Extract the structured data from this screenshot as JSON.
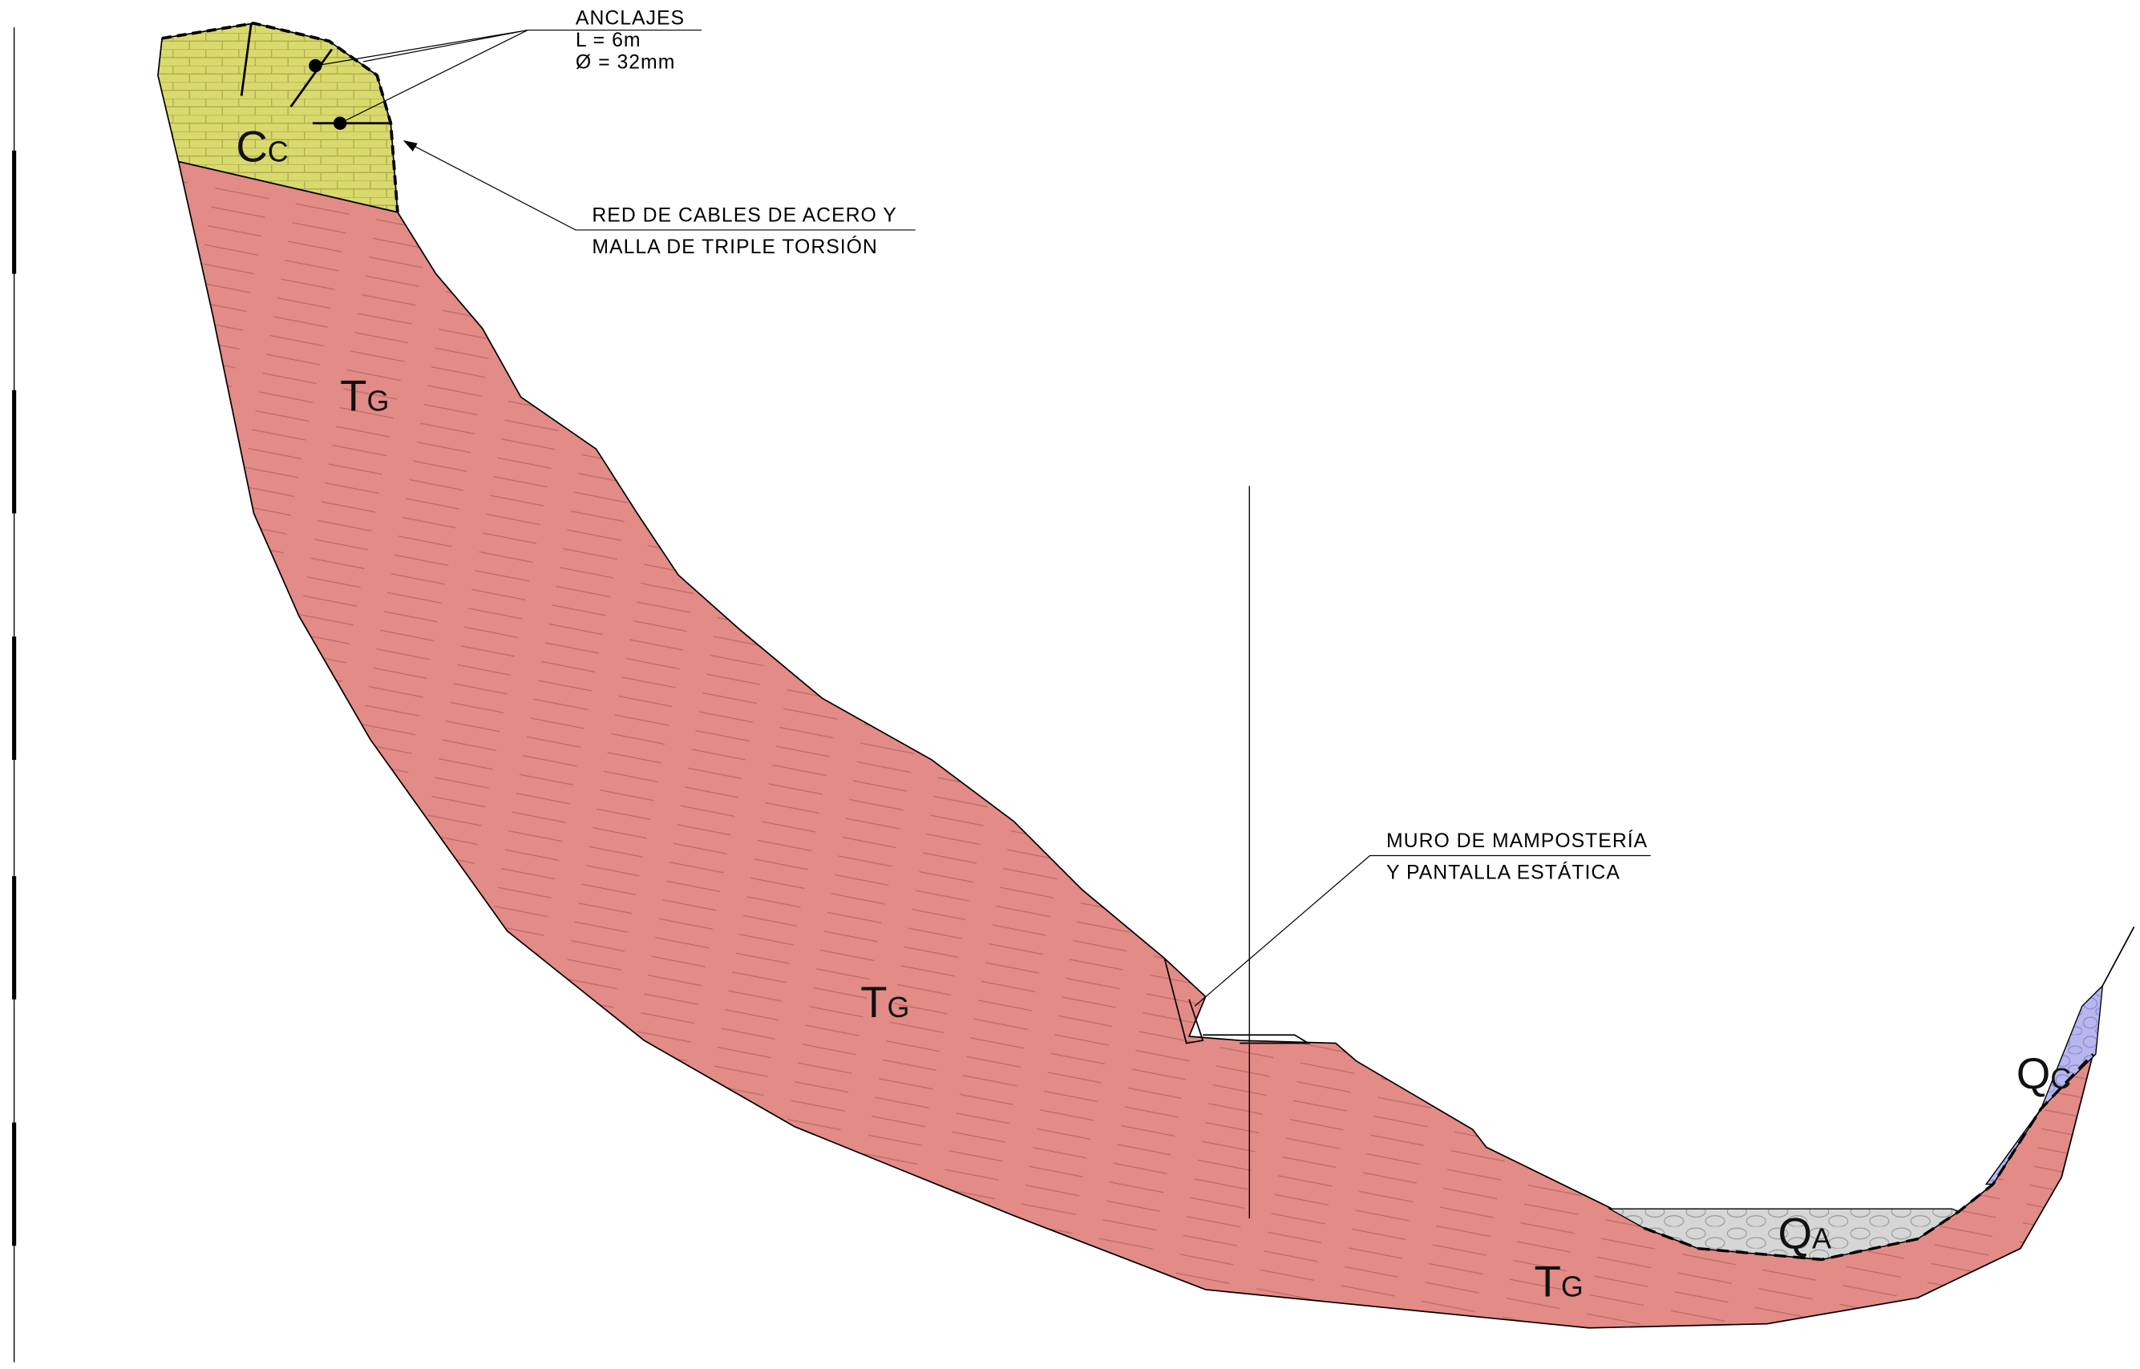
{
  "callouts": [
    {
      "lines": [
        "ANCLAJES",
        "L = 6m",
        "Ø = 32mm"
      ]
    },
    {
      "lines": [
        "RED DE CABLES DE ACERO Y",
        "MALLA DE TRIPLE TORSIÓN"
      ]
    },
    {
      "lines": [
        "MURO DE MAMPOSTERÍA",
        "Y PANTALLA ESTÁTICA"
      ]
    }
  ],
  "units": [
    {
      "main": "C",
      "sub": "C"
    },
    {
      "main": "T",
      "sub": "G"
    },
    {
      "main": "T",
      "sub": "G"
    },
    {
      "main": "T",
      "sub": "G"
    },
    {
      "main": "Q",
      "sub": "A"
    },
    {
      "main": "Q",
      "sub": "C"
    }
  ]
}
